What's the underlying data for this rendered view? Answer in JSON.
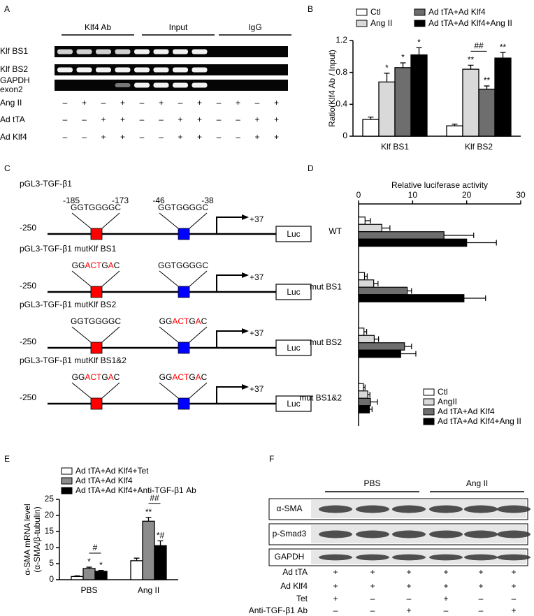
{
  "panel_a": {
    "label": "A",
    "groups": [
      "Klf4 Ab",
      "Input",
      "IgG"
    ],
    "rows": [
      "Klf BS1",
      "Klf BS2",
      [
        "GAPDH",
        "exon2"
      ]
    ],
    "conditions": [
      {
        "name": "Ang II",
        "signs": [
          "–",
          "+",
          "–",
          "+",
          "–",
          "+",
          "–",
          "+",
          "–",
          "+",
          "–",
          "+"
        ]
      },
      {
        "name": "Ad tTA",
        "signs": [
          "–",
          "–",
          "+",
          "+",
          "–",
          "–",
          "+",
          "+",
          "–",
          "–",
          "+",
          "+"
        ]
      },
      {
        "name": "Ad Klf4",
        "signs": [
          "–",
          "–",
          "+",
          "+",
          "–",
          "–",
          "+",
          "+",
          "–",
          "–",
          "+",
          "+"
        ]
      }
    ]
  },
  "panel_c": {
    "label": "C",
    "constructs": [
      {
        "name": "pGL3-TGF-β1",
        "positions": [
          "-185",
          "-173",
          "-46",
          "-38"
        ],
        "sites": [
          [
            {
              "text": "GGTGGGGC"
            }
          ],
          [
            {
              "text": "GGTGGGGC"
            }
          ]
        ],
        "start": "-250",
        "end": "+37",
        "reporter": "Luc"
      },
      {
        "name": "pGL3-TGF-β1 mutKlf BS1",
        "sites": [
          [
            {
              "text": "GG"
            },
            {
              "text": "ACT",
              "mutated": true
            },
            {
              "text": "G"
            },
            {
              "text": "A",
              "mutated": true
            },
            {
              "text": "C"
            }
          ],
          [
            {
              "text": "GGTGGGGC"
            }
          ]
        ],
        "start": "-250",
        "end": "+37",
        "reporter": "Luc"
      },
      {
        "name": "pGL3-TGF-β1 mutKlf BS2",
        "sites": [
          [
            {
              "text": "GGTGGGGC"
            }
          ],
          [
            {
              "text": "GG"
            },
            {
              "text": "ACT",
              "mutated": true
            },
            {
              "text": "G"
            },
            {
              "text": "A",
              "mutated": true
            },
            {
              "text": "C"
            }
          ]
        ],
        "start": "-250",
        "end": "+37",
        "reporter": "Luc"
      },
      {
        "name": "pGL3-TGF-β1 mutKlf BS1&2",
        "sites": [
          [
            {
              "text": "GG"
            },
            {
              "text": "ACT",
              "mutated": true
            },
            {
              "text": "G"
            },
            {
              "text": "A",
              "mutated": true
            },
            {
              "text": "C"
            }
          ],
          [
            {
              "text": "GG"
            },
            {
              "text": "ACT",
              "mutated": true
            },
            {
              "text": "G"
            },
            {
              "text": "A",
              "mutated": true
            },
            {
              "text": "C"
            }
          ]
        ],
        "start": "-250",
        "end": "+37",
        "reporter": "Luc"
      }
    ]
  },
  "panel_f": {
    "label": "F",
    "groups": [
      "PBS",
      "Ang II"
    ],
    "rows": [
      "α-SMA",
      "p-Smad3",
      "GAPDH"
    ],
    "conditions": [
      {
        "name": "Ad tTA",
        "signs": [
          "+",
          "+",
          "+",
          "+",
          "+",
          "+"
        ]
      },
      {
        "name": "Ad Klf4",
        "signs": [
          "+",
          "+",
          "+",
          "+",
          "+",
          "+"
        ]
      },
      {
        "name": "Tet",
        "signs": [
          "+",
          "–",
          "–",
          "+",
          "–",
          "–"
        ]
      },
      {
        "name": "Anti-TGF-β1 Ab",
        "signs": [
          "–",
          "–",
          "+",
          "–",
          "–",
          "+"
        ]
      }
    ]
  },
  "chart_data": [
    {
      "type": "bar",
      "label": "B",
      "ylabel": "Ratio(Klf4 Ab / Input)",
      "categories": [
        "Klf BS1",
        "Klf BS2"
      ],
      "ylim": [
        0,
        1.2
      ],
      "yticks": [
        0,
        0.4,
        0.8,
        1.2
      ],
      "series": [
        {
          "name": "Ctl",
          "color": "#ffffff",
          "values": [
            0.21,
            0.13
          ],
          "errors": [
            0.03,
            0.02
          ],
          "labels": [
            null,
            null
          ]
        },
        {
          "name": "Ang II",
          "color": "#d9d9d9",
          "values": [
            0.68,
            0.84
          ],
          "errors": [
            0.11,
            0.05
          ],
          "labels": [
            "*",
            "**"
          ]
        },
        {
          "name": "Ad tTA+Ad Klf4",
          "color": "#6e6e6e",
          "values": [
            0.86,
            0.59
          ],
          "errors": [
            0.06,
            0.04
          ],
          "labels": [
            "*",
            "**"
          ]
        },
        {
          "name": "Ad tTA+Ad Klf4+Ang II",
          "color": "#000000",
          "values": [
            1.02,
            0.98
          ],
          "errors": [
            0.09,
            0.07
          ],
          "labels": [
            "*",
            "**"
          ]
        }
      ],
      "brackets": [
        {
          "text": "##",
          "category": 1,
          "from": 1,
          "to": 2
        }
      ]
    },
    {
      "type": "barh",
      "label": "D",
      "title": "Relative luciferase activity",
      "categories": [
        "WT",
        "mut BS1",
        "mut BS2",
        "mut BS1&2"
      ],
      "xlim": [
        0,
        30
      ],
      "xticks": [
        0,
        10,
        20,
        30
      ],
      "legend": "lower right",
      "series": [
        {
          "name": "Ctl",
          "color": "#ffffff",
          "values": [
            1.2,
            1.1,
            1.0,
            0.9
          ],
          "errors": [
            1.0,
            0.5,
            0.5,
            0.3
          ]
        },
        {
          "name": "AngII",
          "color": "#d9d9d9",
          "values": [
            4.3,
            2.8,
            2.9,
            1.7
          ],
          "errors": [
            1.5,
            0.8,
            0.8,
            0.4
          ]
        },
        {
          "name": "Ad tTA+Ad Klf4",
          "color": "#6e6e6e",
          "values": [
            15.8,
            9.0,
            8.5,
            2.2
          ],
          "errors": [
            5.5,
            0.8,
            1.3,
            1.3
          ]
        },
        {
          "name": "Ad tTA+Ad Klf4+Ang II",
          "color": "#000000",
          "values": [
            20.0,
            19.5,
            7.8,
            2.0
          ],
          "errors": [
            5.5,
            4.0,
            2.8,
            0.5
          ]
        }
      ]
    },
    {
      "type": "bar",
      "label": "E",
      "ylabel": [
        "α-SMA mRNA level",
        "(α-SMA/β-tubulin)"
      ],
      "categories": [
        "PBS",
        "Ang II"
      ],
      "ylim": [
        0,
        25
      ],
      "yticks": [
        0,
        5,
        10,
        15,
        20,
        25
      ],
      "series": [
        {
          "name": "Ad tTA+Ad Klf4+Tet",
          "color": "#ffffff",
          "values": [
            1.0,
            5.9
          ],
          "errors": [
            0.2,
            0.8
          ],
          "labels": [
            null,
            null
          ]
        },
        {
          "name": "Ad tTA+Ad Klf4",
          "color": "#8c8c8c",
          "values": [
            3.5,
            18.2
          ],
          "errors": [
            0.4,
            1.2
          ],
          "labels": [
            "*",
            "**"
          ]
        },
        {
          "name": "Ad tTA+Ad Klf4+Anti-TGF-β1 Ab",
          "color": "#000000",
          "values": [
            2.6,
            10.6
          ],
          "errors": [
            0.3,
            1.5
          ],
          "labels": [
            "*",
            "*#"
          ]
        }
      ],
      "brackets": [
        {
          "text": "#",
          "category": 0,
          "from": 1,
          "to": 2
        },
        {
          "text": "##",
          "category": 1,
          "from": 1,
          "to": 2
        }
      ]
    }
  ]
}
